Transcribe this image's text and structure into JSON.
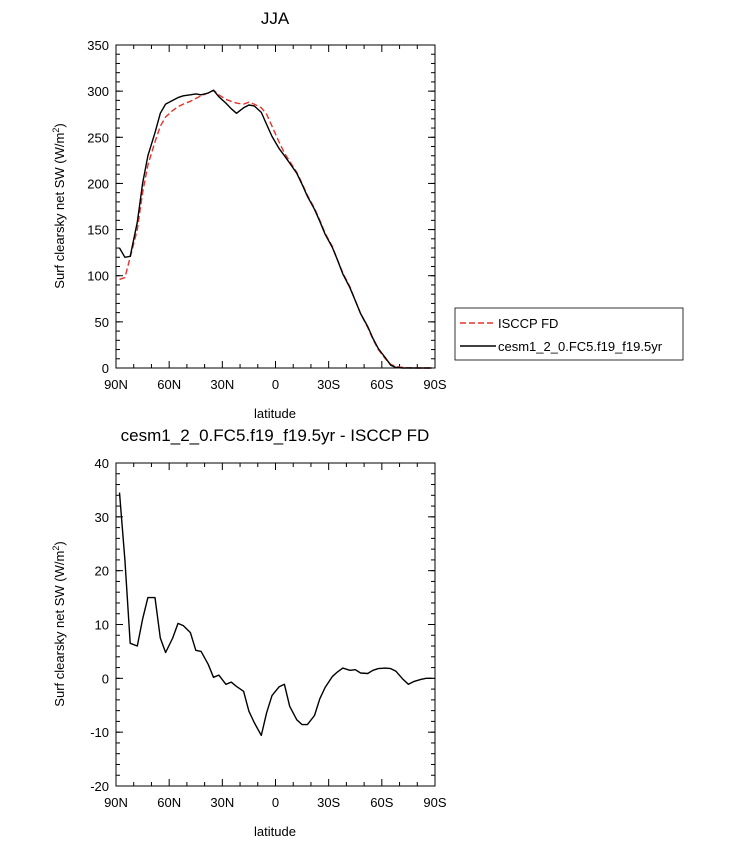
{
  "chart_data": [
    {
      "type": "line",
      "title": "JJA",
      "xlabel": "latitude",
      "ylabel": "Surf clearsky net SW (W/m",
      "ylabel_sup": "2",
      "ylabel_end": ")",
      "xlim": [
        90,
        -90
      ],
      "ylim": [
        0,
        350
      ],
      "xticks": [
        90,
        60,
        30,
        0,
        -30,
        -60,
        -90
      ],
      "xtick_labels": [
        "90N",
        "60N",
        "30N",
        "0",
        "30S",
        "60S",
        "90S"
      ],
      "yticks": [
        0,
        50,
        100,
        150,
        200,
        250,
        300,
        350
      ],
      "ytick_labels": [
        "0",
        "50",
        "100",
        "150",
        "200",
        "250",
        "300",
        "350"
      ],
      "legend_position": "right",
      "series": [
        {
          "name": "ISCCP FD",
          "color": "#e8322c",
          "dash": "dashed",
          "x": [
            88,
            85,
            82,
            78,
            75,
            72,
            68,
            65,
            62,
            58,
            55,
            52,
            48,
            45,
            42,
            38,
            35,
            32,
            28,
            25,
            22,
            18,
            15,
            12,
            8,
            5,
            2,
            -2,
            -5,
            -8,
            -12,
            -15,
            -18,
            -22,
            -25,
            -28,
            -32,
            -35,
            -38,
            -42,
            -45,
            -48,
            -52,
            -55,
            -58,
            -62,
            -65,
            -68,
            -72,
            -75,
            -78,
            -82,
            -85,
            -88
          ],
          "y": [
            96,
            98,
            120,
            150,
            190,
            220,
            245,
            262,
            272,
            279,
            283,
            286,
            289,
            292,
            295,
            298,
            301,
            296,
            291,
            289,
            287,
            286,
            288,
            286,
            282,
            275,
            262,
            245,
            233,
            224,
            212,
            200,
            187,
            173,
            160,
            146,
            132,
            117,
            103,
            88,
            73,
            59,
            44,
            31,
            20,
            10,
            4,
            1.5,
            0.5,
            0.2,
            0.1,
            0,
            0,
            0
          ]
        },
        {
          "name": "cesm1_2_0.FC5.f19_f19.5yr",
          "color": "#000000",
          "dash": "solid",
          "x": [
            88,
            85,
            82,
            78,
            75,
            72,
            68,
            65,
            62,
            58,
            55,
            52,
            48,
            45,
            42,
            38,
            35,
            32,
            28,
            25,
            22,
            18,
            15,
            12,
            8,
            5,
            2,
            -2,
            -5,
            -8,
            -12,
            -15,
            -18,
            -22,
            -25,
            -28,
            -32,
            -35,
            -38,
            -42,
            -45,
            -48,
            -52,
            -55,
            -58,
            -62,
            -65,
            -68,
            -72,
            -75,
            -78,
            -82,
            -85,
            -88
          ],
          "y": [
            130,
            120,
            121,
            158,
            200,
            230,
            255,
            276,
            286,
            290,
            293,
            295,
            296,
            297,
            296,
            298,
            301,
            294,
            287,
            281,
            276,
            282,
            285,
            284,
            277,
            264,
            251,
            238,
            230,
            222,
            211,
            199,
            186,
            172,
            159,
            145,
            131,
            117,
            102,
            87,
            73,
            59,
            45,
            32,
            21,
            11,
            3,
            0.5,
            0,
            0,
            0,
            0,
            0,
            0
          ]
        }
      ]
    },
    {
      "type": "line",
      "title": "cesm1_2_0.FC5.f19_f19.5yr - ISCCP FD",
      "xlabel": "latitude",
      "ylabel": "Surf clearsky net SW (W/m",
      "ylabel_sup": "2",
      "ylabel_end": ")",
      "xlim": [
        90,
        -90
      ],
      "ylim": [
        -20,
        40
      ],
      "xticks": [
        90,
        60,
        30,
        0,
        -30,
        -60,
        -90
      ],
      "xtick_labels": [
        "90N",
        "60N",
        "30N",
        "0",
        "30S",
        "60S",
        "90S"
      ],
      "yticks": [
        -20,
        -10,
        0,
        10,
        20,
        30,
        40
      ],
      "ytick_labels": [
        "-20",
        "-10",
        "0",
        "10",
        "20",
        "30",
        "40"
      ],
      "series": [
        {
          "name": "",
          "color": "#000000",
          "dash": "solid",
          "x": [
            88,
            85,
            82,
            78,
            75,
            72,
            68,
            65,
            62,
            58,
            55,
            52,
            48,
            45,
            42,
            38,
            35,
            32,
            28,
            25,
            22,
            18,
            15,
            12,
            8,
            5,
            2,
            -2,
            -5,
            -8,
            -12,
            -15,
            -18,
            -22,
            -25,
            -28,
            -32,
            -35,
            -38,
            -42,
            -45,
            -48,
            -52,
            -55,
            -58,
            -62,
            -65,
            -68,
            -72,
            -75,
            -78,
            -82,
            -85,
            -88
          ],
          "y": [
            34.5,
            22,
            6.5,
            6,
            11,
            15,
            15,
            7.5,
            4.8,
            7.5,
            10.2,
            9.8,
            8.5,
            5.2,
            5.0,
            2.6,
            0.2,
            0.6,
            -1.1,
            -0.7,
            -1.5,
            -2.4,
            -6.1,
            -8.2,
            -10.6,
            -6.4,
            -3.2,
            -1.6,
            -1.1,
            -5.2,
            -7.7,
            -8.6,
            -8.6,
            -6.9,
            -3.8,
            -1.7,
            0.3,
            1.2,
            1.9,
            1.5,
            1.6,
            1.0,
            0.9,
            1.5,
            1.8,
            1.9,
            1.8,
            1.3,
            -0.2,
            -1.1,
            -0.6,
            -0.2,
            0,
            0
          ]
        }
      ]
    }
  ]
}
